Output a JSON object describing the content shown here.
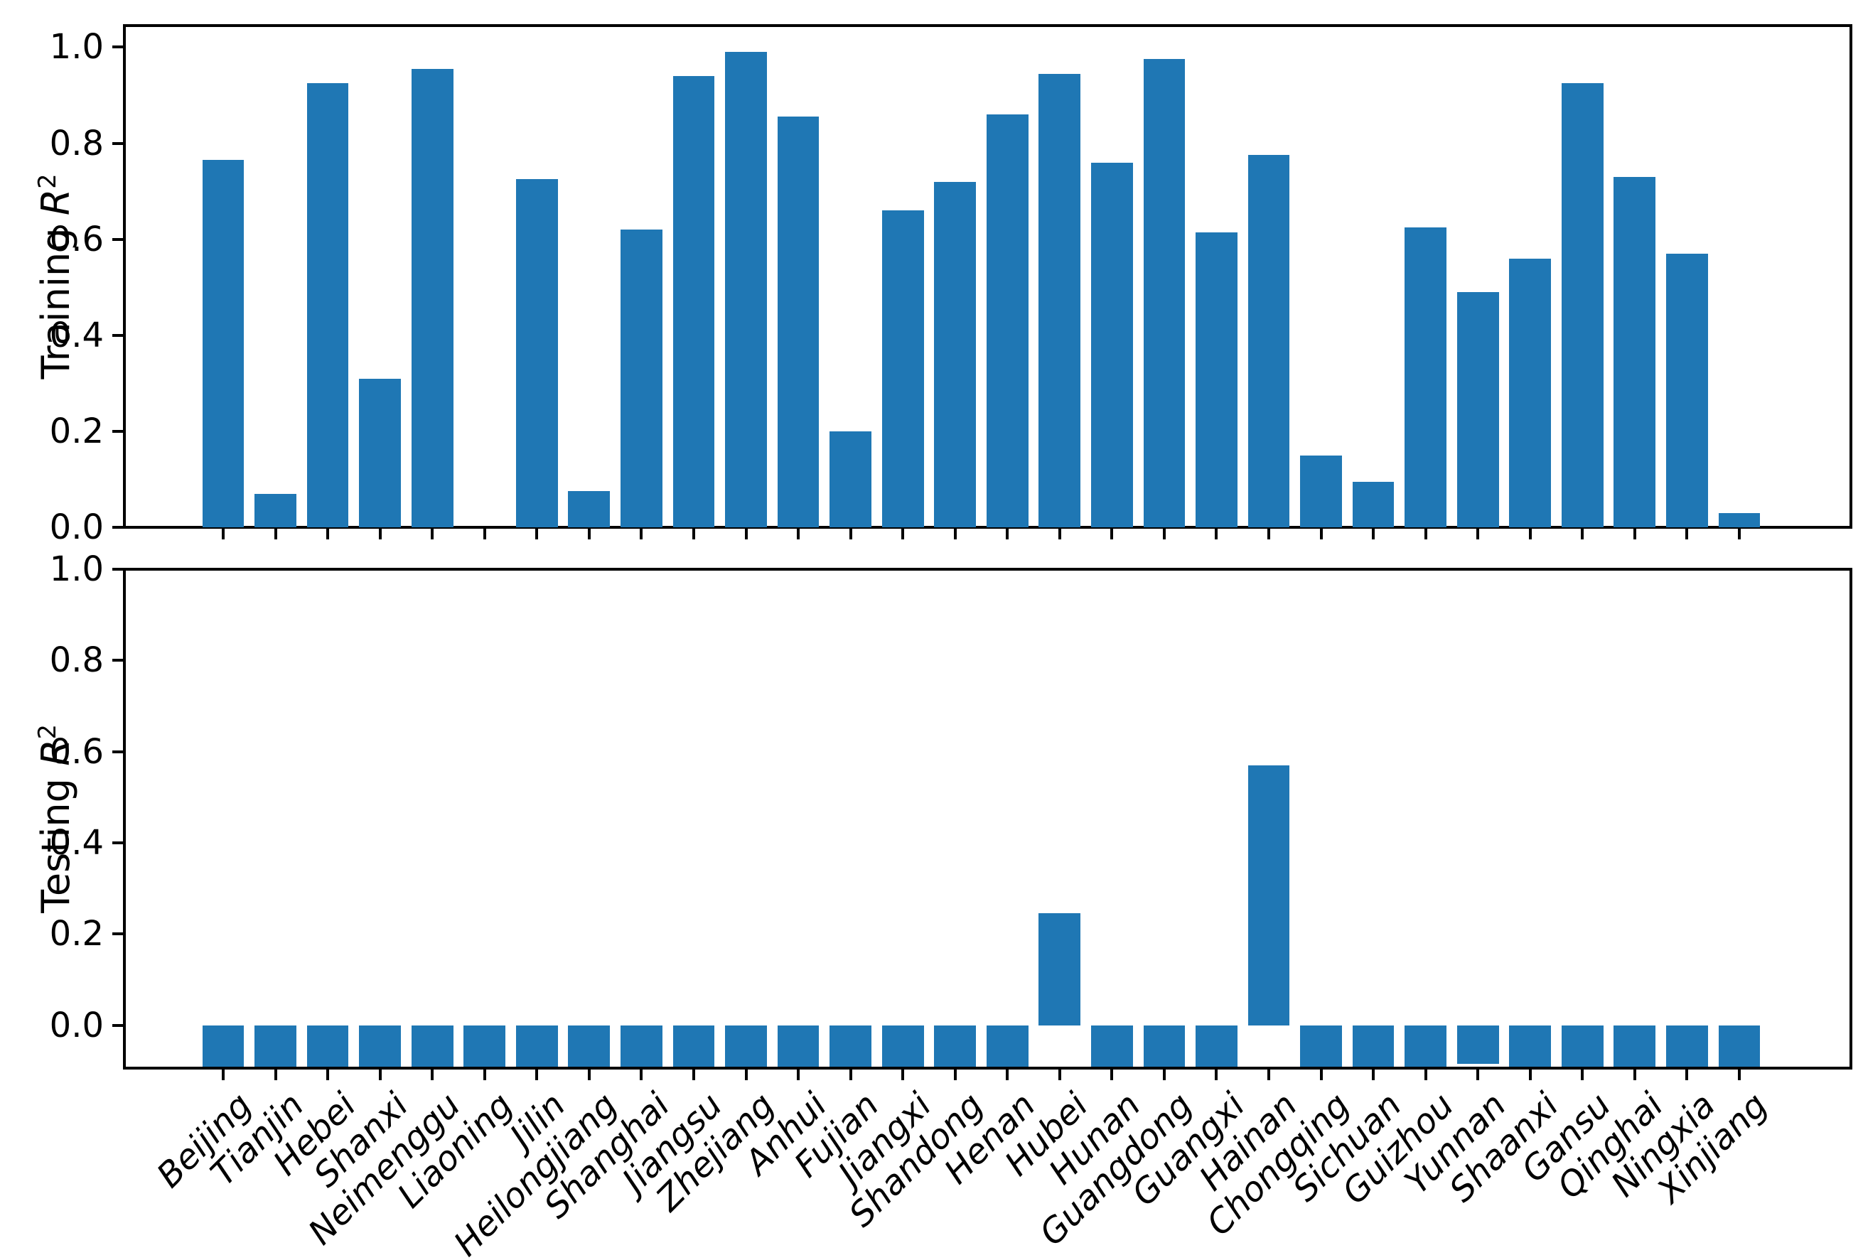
{
  "figure": {
    "background": "#ffffff"
  },
  "colors": {
    "bar": "#1f77b4",
    "axis": "#000000",
    "text": "#000000"
  },
  "chart_data": [
    {
      "id": "training",
      "type": "bar",
      "title": "",
      "xlabel": "",
      "ylabel_prefix": "Training ",
      "ylabel_symbol": "R",
      "ylabel_exponent": "2",
      "yticks": [
        "0.0",
        "0.2",
        "0.4",
        "0.6",
        "0.8",
        "1.0"
      ],
      "ylim": [
        0,
        1.045
      ],
      "grid": false,
      "legend": null,
      "categories": [
        "Beijing",
        "Tianjin",
        "Hebei",
        "Shanxi",
        "Neimenggu",
        "Liaoning",
        "Jilin",
        "Heilongjiang",
        "Shanghai",
        "Jiangsu",
        "Zhejiang",
        "Anhui",
        "Fujian",
        "Jiangxi",
        "Shandong",
        "Henan",
        "Hubei",
        "Hunan",
        "Guangdong",
        "Guangxi",
        "Hainan",
        "Chongqing",
        "Sichuan",
        "Guizhou",
        "Yunnan",
        "Shaanxi",
        "Gansu",
        "Qinghai",
        "Ningxia",
        "Xinjiang"
      ],
      "values": [
        0.765,
        0.07,
        0.925,
        0.31,
        0.955,
        null,
        0.725,
        0.075,
        0.62,
        0.94,
        0.99,
        0.855,
        0.2,
        0.66,
        0.72,
        0.86,
        0.945,
        0.76,
        0.975,
        0.615,
        0.775,
        0.15,
        0.095,
        0.625,
        0.49,
        0.56,
        0.925,
        0.73,
        0.57,
        0.03
      ],
      "missing_bars": [
        "Liaoning"
      ]
    },
    {
      "id": "testing",
      "type": "bar",
      "title": "",
      "xlabel": "",
      "ylabel_prefix": "Testing ",
      "ylabel_symbol": "R",
      "ylabel_exponent": "2",
      "yticks": [
        "0.0",
        "0.2",
        "0.4",
        "0.6",
        "0.8",
        "1.0"
      ],
      "ylim": [
        -0.094,
        1.0
      ],
      "grid": false,
      "legend": null,
      "categories": [
        "Beijing",
        "Tianjin",
        "Hebei",
        "Shanxi",
        "Neimenggu",
        "Liaoning",
        "Jilin",
        "Heilongjiang",
        "Shanghai",
        "Jiangsu",
        "Zhejiang",
        "Anhui",
        "Fujian",
        "Jiangxi",
        "Shandong",
        "Henan",
        "Hubei",
        "Hunan",
        "Guangdong",
        "Guangxi",
        "Hainan",
        "Chongqing",
        "Sichuan",
        "Guizhou",
        "Yunnan",
        "Shaanxi",
        "Gansu",
        "Qinghai",
        "Ningxia",
        "Xinjiang"
      ],
      "values": [
        -0.095,
        -0.095,
        -0.095,
        -0.095,
        -0.095,
        -0.095,
        -0.095,
        -0.095,
        -0.095,
        -0.095,
        -0.095,
        -0.095,
        -0.095,
        -0.095,
        -0.095,
        -0.095,
        0.245,
        -0.095,
        -0.095,
        -0.095,
        0.57,
        -0.095,
        -0.095,
        -0.095,
        -0.085,
        -0.095,
        -0.095,
        -0.095,
        -0.095,
        -0.095
      ],
      "clip_note": "negative bars are clipped at the lower axis limit"
    }
  ]
}
